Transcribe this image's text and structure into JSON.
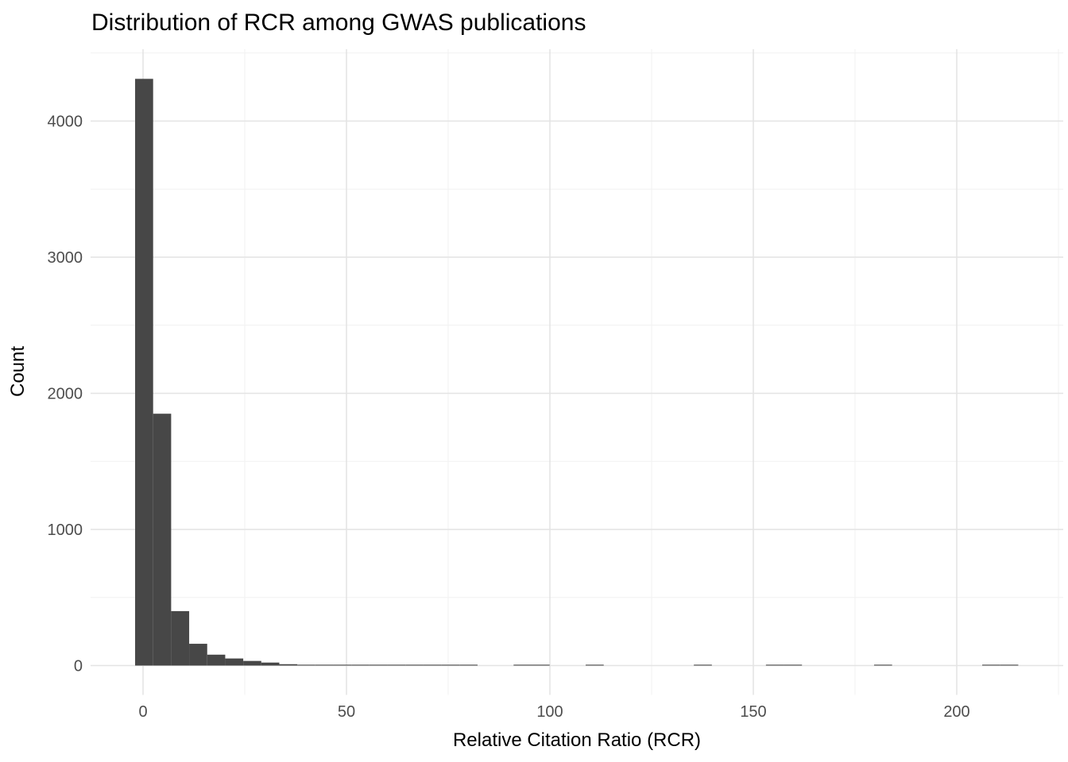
{
  "chart_data": {
    "type": "bar",
    "subtype": "histogram",
    "title": "Distribution of RCR among GWAS publications",
    "xlabel": "Relative Citation Ratio (RCR)",
    "ylabel": "Count",
    "x_axis": {
      "major_ticks": [
        0,
        50,
        100,
        150,
        200
      ],
      "major_tick_labels": [
        "0",
        "50",
        "100",
        "150",
        "200"
      ],
      "minor_gridlines": [
        25,
        75,
        125,
        175,
        225
      ],
      "range": [
        -12.9,
        226.2
      ]
    },
    "y_axis": {
      "major_ticks": [
        0,
        1000,
        2000,
        3000,
        4000
      ],
      "major_tick_labels": [
        "0",
        "1000",
        "2000",
        "3000",
        "4000"
      ],
      "minor_gridlines": [
        500,
        1500,
        2500,
        3500,
        4500
      ],
      "range": [
        -216,
        4531
      ]
    },
    "bins": {
      "start": -1.95,
      "width": 4.43,
      "counts": [
        4310,
        1850,
        400,
        160,
        80,
        52,
        34,
        22,
        10,
        6,
        4,
        3,
        3,
        2,
        3,
        2,
        2,
        1,
        1,
        0,
        0,
        2,
        1,
        0,
        0,
        1,
        0,
        0,
        0,
        0,
        0,
        1,
        0,
        0,
        0,
        1,
        1,
        0,
        0,
        0,
        0,
        1,
        0,
        0,
        0,
        0,
        0,
        1,
        1
      ]
    },
    "grid": "on",
    "legend": "none",
    "colors": {
      "bar": "#474747",
      "grid_major": "#e4e4e4",
      "grid_minor": "#f1f1f1",
      "tick_label": "#4d4d4d",
      "title": "#000000",
      "background": "#ffffff"
    }
  }
}
